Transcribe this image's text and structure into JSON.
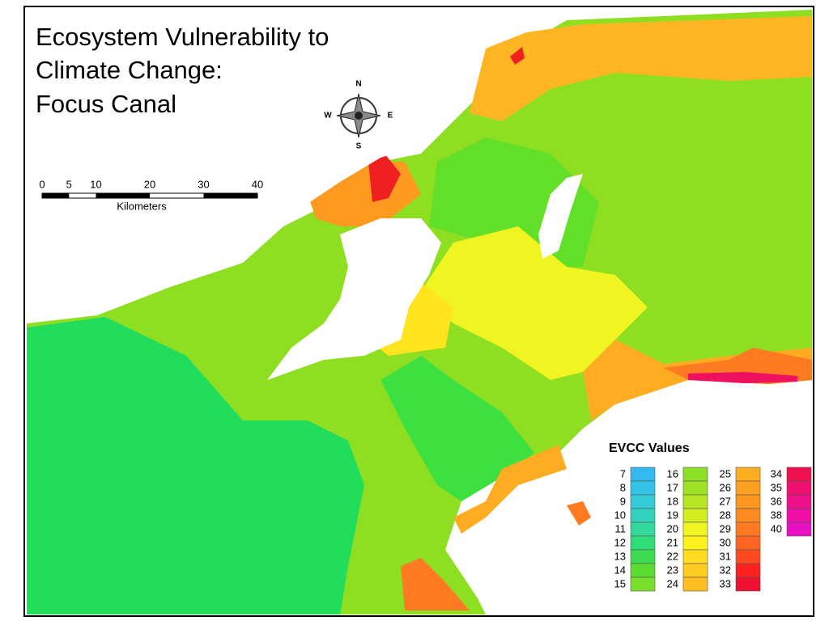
{
  "title": {
    "lines": [
      "Ecosystem Vulnerability to",
      "Climate Change:",
      "Focus Canal"
    ]
  },
  "compass": {
    "north": "N",
    "south": "S",
    "east": "E",
    "west": "W"
  },
  "scale_bar": {
    "ticks": [
      0,
      5,
      10,
      20,
      30,
      40
    ],
    "unit": "Kilometers"
  },
  "legend": {
    "title": "EVCC Values",
    "columns": [
      [
        {
          "value": 7,
          "color": "#33b8f0"
        },
        {
          "value": 8,
          "color": "#33c2e8"
        },
        {
          "value": 9,
          "color": "#33cbd6"
        },
        {
          "value": 10,
          "color": "#33d2bc"
        },
        {
          "value": 11,
          "color": "#33d99c"
        },
        {
          "value": 12,
          "color": "#30dc78"
        },
        {
          "value": 13,
          "color": "#3ddc50"
        },
        {
          "value": 14,
          "color": "#5cdc30"
        },
        {
          "value": 15,
          "color": "#7ade2c"
        }
      ],
      [
        {
          "value": 16,
          "color": "#8ce028"
        },
        {
          "value": 17,
          "color": "#9ee226"
        },
        {
          "value": 18,
          "color": "#b4e624"
        },
        {
          "value": 19,
          "color": "#d2ee22"
        },
        {
          "value": 20,
          "color": "#f0f522"
        },
        {
          "value": 21,
          "color": "#fff01e"
        },
        {
          "value": 22,
          "color": "#ffdc22"
        },
        {
          "value": 23,
          "color": "#ffcc22"
        },
        {
          "value": 24,
          "color": "#ffbe22"
        }
      ],
      [
        {
          "value": 25,
          "color": "#ffae22"
        },
        {
          "value": 26,
          "color": "#ffa020"
        },
        {
          "value": 27,
          "color": "#ff9620"
        },
        {
          "value": 28,
          "color": "#ff8a20"
        },
        {
          "value": 29,
          "color": "#ff7a20"
        },
        {
          "value": 30,
          "color": "#ff6420"
        },
        {
          "value": 31,
          "color": "#ff4a20"
        },
        {
          "value": 32,
          "color": "#ff2020"
        },
        {
          "value": 33,
          "color": "#f01030"
        }
      ],
      [
        {
          "value": 34,
          "color": "#f01050"
        },
        {
          "value": 35,
          "color": "#f01070"
        },
        {
          "value": 36,
          "color": "#f0108c"
        },
        {
          "value": 38,
          "color": "#f010a8"
        },
        {
          "value": 40,
          "color": "#e810c4"
        }
      ]
    ]
  }
}
